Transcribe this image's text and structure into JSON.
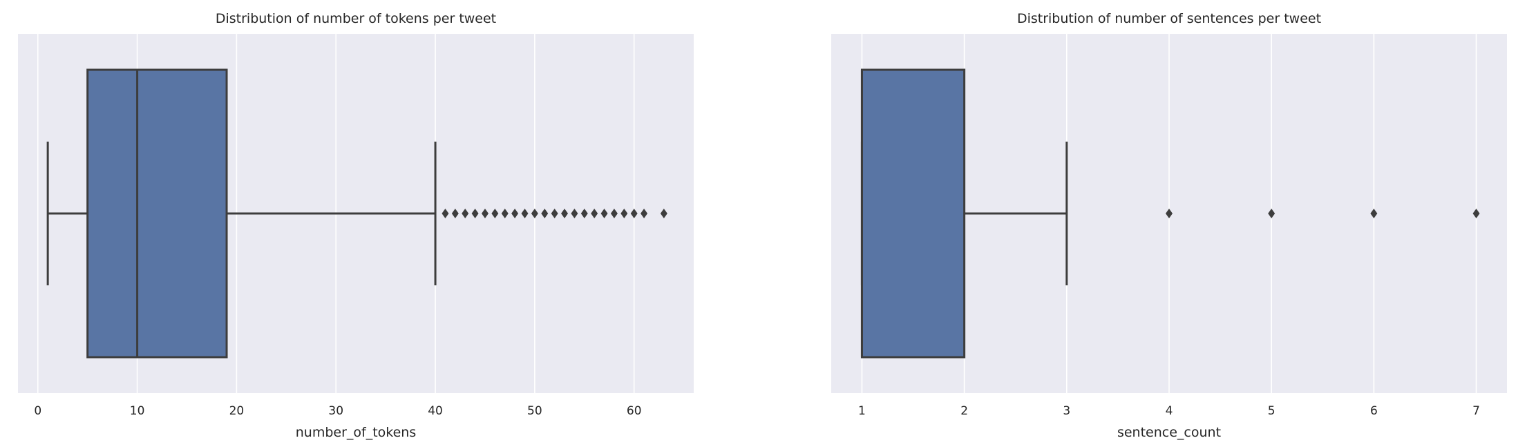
{
  "colors": {
    "background": "#eaeaf2",
    "grid": "#ffffff",
    "box_fill": "#5975a4",
    "line": "#3d3d3d"
  },
  "chart_data": [
    {
      "type": "box",
      "title": "Distribution of number of tokens per tweet",
      "xlabel": "number_of_tokens",
      "ylabel": "",
      "orientation": "horizontal",
      "grid": true,
      "xlim": [
        -2,
        66
      ],
      "xticks": [
        0,
        10,
        20,
        30,
        40,
        50,
        60
      ],
      "box": {
        "whisker_low": 1,
        "q1": 5,
        "median": 10,
        "q3": 19,
        "whisker_high": 40
      },
      "outliers": [
        41,
        42,
        43,
        44,
        45,
        46,
        47,
        48,
        49,
        50,
        51,
        52,
        53,
        54,
        55,
        56,
        57,
        58,
        59,
        60,
        61,
        63
      ]
    },
    {
      "type": "box",
      "title": "Distribution of number of sentences per tweet",
      "xlabel": "sentence_count",
      "ylabel": "",
      "orientation": "horizontal",
      "grid": true,
      "xlim": [
        0.7,
        7.3
      ],
      "xticks": [
        1,
        2,
        3,
        4,
        5,
        6,
        7
      ],
      "box": {
        "whisker_low": 1,
        "q1": 1,
        "median": 1,
        "q3": 2,
        "whisker_high": 3
      },
      "outliers": [
        4,
        5,
        6,
        7
      ]
    }
  ]
}
